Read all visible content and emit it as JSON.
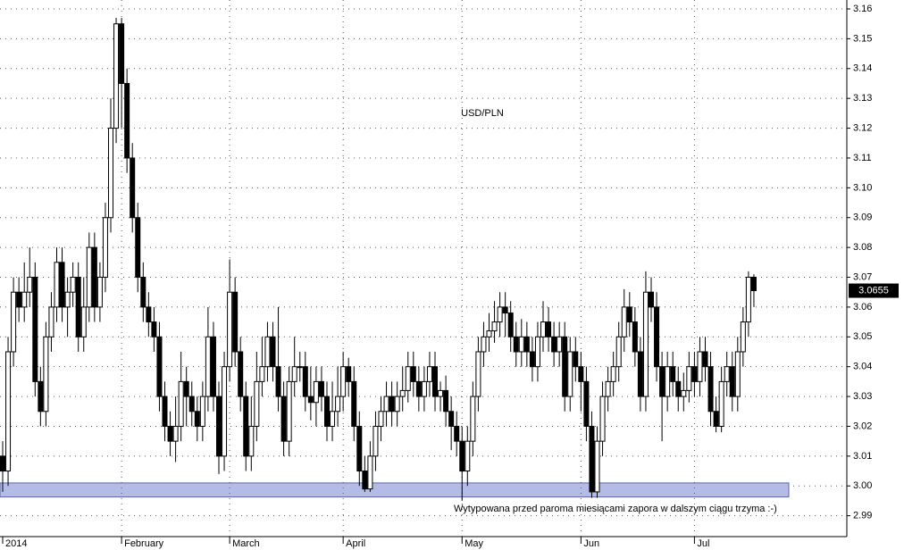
{
  "chart_data": {
    "type": "candlestick",
    "title": "USD/PLN",
    "annotation": "Wytypowana przed paroma miesiącami zapora w dalszym ciągu trzyma :-)",
    "support_zone": [
      2.9975,
      2.9998
    ],
    "zone_color": "#b4bce6",
    "last_price": 3.0655,
    "ylim": [
      2.983,
      3.163
    ],
    "yticks": [
      2.99,
      {
        "value": 3,
        "label": "3.00"
      },
      3.01,
      3.02,
      3.03,
      3.04,
      3.05,
      3.06,
      3.07,
      3.08,
      3.09,
      {
        "value": 3.1,
        "label": "3.10"
      },
      3.11,
      3.12,
      3.13,
      3.14,
      3.15,
      3.16
    ],
    "grid": true,
    "up_color": "#ffffff",
    "down_color": "#000000",
    "categories": [
      "2014",
      null,
      null,
      null,
      null,
      null,
      null,
      null,
      null,
      null,
      null,
      null,
      null,
      null,
      null,
      null,
      null,
      null,
      null,
      null,
      null,
      null,
      "February",
      null,
      null,
      null,
      null,
      null,
      null,
      null,
      null,
      null,
      null,
      null,
      null,
      null,
      null,
      null,
      null,
      null,
      null,
      null,
      "March",
      null,
      null,
      null,
      null,
      null,
      null,
      null,
      null,
      null,
      null,
      null,
      null,
      null,
      null,
      null,
      null,
      null,
      null,
      null,
      null,
      "April",
      null,
      null,
      null,
      null,
      null,
      null,
      null,
      null,
      null,
      null,
      null,
      null,
      null,
      null,
      null,
      null,
      null,
      null,
      null,
      null,
      null,
      "May",
      null,
      null,
      null,
      null,
      null,
      null,
      null,
      null,
      null,
      null,
      null,
      null,
      null,
      null,
      null,
      null,
      null,
      null,
      null,
      null,
      null,
      "Jun",
      null,
      null,
      null,
      null,
      null,
      null,
      null,
      null,
      null,
      null,
      null,
      null,
      null,
      null,
      null,
      null,
      null,
      null,
      null,
      null,
      "Jul",
      null,
      null,
      null,
      null,
      null,
      null,
      null,
      null,
      null,
      null,
      null
    ],
    "open": [
      3.01,
      3.005,
      3.045,
      3.065,
      3.06,
      3.065,
      3.07,
      3.035,
      3.025,
      3.05,
      3.06,
      3.075,
      3.06,
      3.065,
      3.07,
      3.05,
      3.06,
      3.08,
      3.06,
      3.07,
      3.09,
      3.12,
      3.155,
      3.135,
      3.11,
      3.09,
      3.07,
      3.06,
      3.055,
      3.05,
      3.03,
      3.02,
      3.015,
      3.02,
      3.035,
      3.03,
      3.025,
      3.02,
      3.03,
      3.05,
      3.03,
      3.01,
      3.04,
      3.065,
      3.045,
      3.03,
      3.01,
      3.02,
      3.035,
      3.04,
      3.05,
      3.04,
      3.03,
      3.015,
      3.035,
      3.04,
      3.04,
      3.03,
      3.028,
      3.035,
      3.03,
      3.02,
      3.025,
      3.03,
      3.04,
      3.035,
      3.02,
      3.005,
      2.999,
      3.01,
      3.02,
      3.025,
      3.03,
      3.025,
      3.03,
      3.032,
      3.04,
      3.035,
      3.03,
      3.035,
      3.04,
      3.03,
      3.032,
      3.025,
      3.02,
      3.015,
      3.005,
      3.015,
      3.03,
      3.045,
      3.05,
      3.052,
      3.055,
      3.06,
      3.058,
      3.05,
      3.045,
      3.05,
      3.045,
      3.04,
      3.05,
      3.055,
      3.05,
      3.045,
      3.05,
      3.03,
      3.045,
      3.04,
      3.035,
      3.02,
      2.998,
      3.015,
      3.03,
      3.035,
      3.04,
      3.05,
      3.06,
      3.055,
      3.045,
      3.03,
      3.065,
      3.06,
      3.04,
      3.03,
      3.04,
      3.035,
      3.03,
      3.032,
      3.04,
      3.035,
      3.045,
      3.04,
      3.025,
      3.02,
      3.035,
      3.04,
      3.03,
      3.045,
      3.055,
      3.07
    ],
    "high": [
      3.015,
      3.05,
      3.07,
      3.07,
      3.075,
      3.08,
      3.075,
      3.04,
      3.055,
      3.065,
      3.08,
      3.08,
      3.07,
      3.075,
      3.075,
      3.07,
      3.085,
      3.085,
      3.075,
      3.095,
      3.13,
      3.157,
      3.157,
      3.14,
      3.115,
      3.095,
      3.075,
      3.065,
      3.06,
      3.055,
      3.035,
      3.025,
      3.03,
      3.045,
      3.04,
      3.035,
      3.03,
      3.035,
      3.06,
      3.055,
      3.035,
      3.045,
      3.076,
      3.07,
      3.05,
      3.035,
      3.03,
      3.045,
      3.05,
      3.055,
      3.055,
      3.06,
      3.035,
      3.04,
      3.05,
      3.045,
      3.045,
      3.04,
      3.04,
      3.04,
      3.035,
      3.035,
      3.04,
      3.045,
      3.043,
      3.04,
      3.025,
      3.01,
      3.015,
      3.025,
      3.03,
      3.035,
      3.035,
      3.035,
      3.04,
      3.045,
      3.045,
      3.04,
      3.04,
      3.045,
      3.045,
      3.035,
      3.037,
      3.03,
      3.025,
      3.02,
      3.02,
      3.035,
      3.05,
      3.055,
      3.058,
      3.062,
      3.065,
      3.065,
      3.062,
      3.055,
      3.056,
      3.055,
      3.05,
      3.055,
      3.062,
      3.06,
      3.055,
      3.055,
      3.055,
      3.05,
      3.05,
      3.045,
      3.04,
      3.025,
      3.02,
      3.035,
      3.04,
      3.045,
      3.055,
      3.066,
      3.065,
      3.06,
      3.05,
      3.072,
      3.07,
      3.065,
      3.045,
      3.045,
      3.045,
      3.04,
      3.038,
      3.045,
      3.045,
      3.05,
      3.05,
      3.045,
      3.03,
      3.04,
      3.045,
      3.045,
      3.05,
      3.06,
      3.072,
      3.071
    ],
    "low": [
      2.998,
      3.0,
      3.04,
      3.055,
      3.055,
      3.06,
      3.03,
      3.02,
      3.02,
      3.045,
      3.055,
      3.055,
      3.05,
      3.06,
      3.045,
      3.045,
      3.055,
      3.055,
      3.055,
      3.065,
      3.085,
      3.115,
      3.12,
      3.105,
      3.085,
      3.065,
      3.055,
      3.05,
      3.045,
      3.025,
      3.015,
      3.01,
      3.008,
      3.015,
      3.02,
      3.02,
      3.015,
      3.015,
      3.025,
      3.025,
      3.004,
      3.005,
      3.035,
      3.04,
      3.025,
      3.005,
      3.005,
      3.015,
      3.03,
      3.035,
      3.035,
      3.025,
      3.01,
      3.01,
      3.03,
      3.035,
      3.025,
      3.022,
      3.02,
      3.025,
      3.015,
      3.015,
      3.02,
      3.025,
      3.03,
      3.015,
      3.0,
      2.998,
      2.998,
      3.005,
      3.015,
      3.02,
      3.02,
      3.02,
      3.025,
      3.028,
      3.03,
      3.025,
      3.025,
      3.03,
      3.025,
      3.025,
      3.02,
      3.012,
      3.01,
      2.995,
      3.0,
      3.01,
      3.025,
      3.04,
      3.045,
      3.048,
      3.05,
      3.05,
      3.045,
      3.04,
      3.04,
      3.04,
      3.035,
      3.035,
      3.045,
      3.045,
      3.04,
      3.04,
      3.025,
      3.025,
      3.035,
      3.025,
      3.015,
      2.996,
      2.996,
      3.01,
      3.025,
      3.03,
      3.035,
      3.045,
      3.05,
      3.04,
      3.025,
      3.025,
      3.055,
      3.035,
      3.015,
      3.025,
      3.03,
      3.025,
      3.025,
      3.028,
      3.03,
      3.03,
      3.035,
      3.02,
      3.018,
      3.018,
      3.03,
      3.025,
      3.025,
      3.04,
      3.05,
      3.06
    ],
    "close": [
      3.005,
      3.045,
      3.065,
      3.06,
      3.065,
      3.07,
      3.035,
      3.025,
      3.05,
      3.06,
      3.075,
      3.06,
      3.065,
      3.07,
      3.05,
      3.06,
      3.08,
      3.06,
      3.07,
      3.09,
      3.12,
      3.155,
      3.135,
      3.11,
      3.09,
      3.07,
      3.06,
      3.055,
      3.05,
      3.03,
      3.02,
      3.015,
      3.02,
      3.035,
      3.03,
      3.025,
      3.02,
      3.03,
      3.05,
      3.03,
      3.01,
      3.04,
      3.065,
      3.045,
      3.03,
      3.01,
      3.02,
      3.035,
      3.04,
      3.05,
      3.04,
      3.03,
      3.015,
      3.035,
      3.04,
      3.04,
      3.03,
      3.028,
      3.035,
      3.03,
      3.02,
      3.025,
      3.03,
      3.04,
      3.035,
      3.02,
      3.005,
      2.999,
      3.01,
      3.02,
      3.025,
      3.03,
      3.025,
      3.03,
      3.032,
      3.04,
      3.035,
      3.03,
      3.035,
      3.04,
      3.03,
      3.032,
      3.025,
      3.02,
      3.015,
      3.005,
      3.015,
      3.03,
      3.045,
      3.05,
      3.052,
      3.055,
      3.06,
      3.058,
      3.05,
      3.045,
      3.05,
      3.045,
      3.04,
      3.05,
      3.055,
      3.05,
      3.045,
      3.05,
      3.03,
      3.045,
      3.04,
      3.035,
      3.02,
      2.998,
      3.015,
      3.03,
      3.035,
      3.04,
      3.05,
      3.06,
      3.055,
      3.045,
      3.03,
      3.065,
      3.06,
      3.04,
      3.03,
      3.04,
      3.035,
      3.03,
      3.032,
      3.04,
      3.035,
      3.045,
      3.04,
      3.025,
      3.02,
      3.035,
      3.04,
      3.03,
      3.045,
      3.055,
      3.07,
      3.0655
    ]
  }
}
